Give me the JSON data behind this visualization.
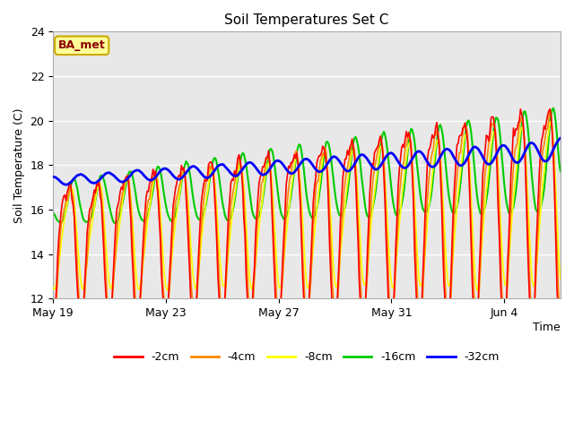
{
  "title": "Soil Temperatures Set C",
  "xlabel": "Time",
  "ylabel": "Soil Temperature (C)",
  "ylim": [
    12,
    24
  ],
  "yticks": [
    12,
    14,
    16,
    18,
    20,
    22,
    24
  ],
  "plot_bg_color": "#e8e8e8",
  "colors": {
    "-2cm": "#ff0000",
    "-4cm": "#ff8800",
    "-8cm": "#ffff00",
    "-16cm": "#00cc00",
    "-32cm": "#0000ff"
  },
  "legend_labels": [
    "-2cm",
    "-4cm",
    "-8cm",
    "-16cm",
    "-32cm"
  ],
  "annotation_text": "BA_met",
  "annotation_color": "#8b0000",
  "annotation_bg": "#ffff99",
  "annotation_border": "#ccaa00",
  "xtick_labels": [
    "May 19",
    "May 23",
    "May 27",
    "May 31",
    "Jun 4"
  ],
  "xtick_positions": [
    0,
    4,
    8,
    12,
    16
  ],
  "xlim": [
    0,
    18
  ],
  "n_points": 432,
  "total_days": 18
}
